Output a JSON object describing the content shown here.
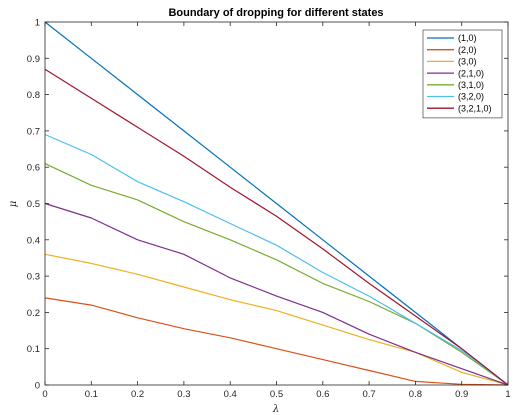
{
  "chart_data": {
    "type": "line",
    "title": "Boundary of dropping for different states",
    "xlabel": "λ",
    "ylabel": "μ",
    "xlim": [
      0,
      1
    ],
    "ylim": [
      0,
      1
    ],
    "grid": false,
    "legend_position": "top-right",
    "x_ticks": [
      "0",
      "0.1",
      "0.2",
      "0.3",
      "0.4",
      "0.5",
      "0.6",
      "0.7",
      "0.8",
      "0.9",
      "1"
    ],
    "y_ticks": [
      "0",
      "0.1",
      "0.2",
      "0.3",
      "0.4",
      "0.5",
      "0.6",
      "0.7",
      "0.8",
      "0.9",
      "1"
    ],
    "x": [
      0,
      0.1,
      0.2,
      0.3,
      0.4,
      0.5,
      0.6,
      0.7,
      0.8,
      0.9,
      1
    ],
    "series": [
      {
        "name": "(1,0)",
        "color": "#0072BD",
        "values": [
          1.0,
          0.9,
          0.8,
          0.7,
          0.6,
          0.5,
          0.4,
          0.3,
          0.2,
          0.1,
          0.0
        ]
      },
      {
        "name": "(2,0)",
        "color": "#D95319",
        "values": [
          0.24,
          0.22,
          0.185,
          0.155,
          0.13,
          0.1,
          0.07,
          0.04,
          0.01,
          0.002,
          0.0
        ]
      },
      {
        "name": "(3,0)",
        "color": "#EDB120",
        "values": [
          0.36,
          0.335,
          0.305,
          0.27,
          0.235,
          0.205,
          0.165,
          0.125,
          0.09,
          0.035,
          0.0
        ]
      },
      {
        "name": "(2,1,0)",
        "color": "#7E2F8E",
        "values": [
          0.5,
          0.46,
          0.4,
          0.36,
          0.295,
          0.245,
          0.2,
          0.14,
          0.09,
          0.045,
          0.0
        ]
      },
      {
        "name": "(3,1,0)",
        "color": "#77AC30",
        "values": [
          0.61,
          0.55,
          0.51,
          0.45,
          0.4,
          0.345,
          0.28,
          0.23,
          0.17,
          0.09,
          0.0
        ]
      },
      {
        "name": "(3,2,0)",
        "color": "#4DBEEE",
        "values": [
          0.69,
          0.635,
          0.56,
          0.505,
          0.445,
          0.385,
          0.31,
          0.245,
          0.17,
          0.095,
          0.0
        ]
      },
      {
        "name": "(3,2,1,0)",
        "color": "#A2142F",
        "values": [
          0.87,
          0.79,
          0.71,
          0.63,
          0.545,
          0.465,
          0.375,
          0.28,
          0.19,
          0.1,
          0.0
        ]
      }
    ]
  }
}
